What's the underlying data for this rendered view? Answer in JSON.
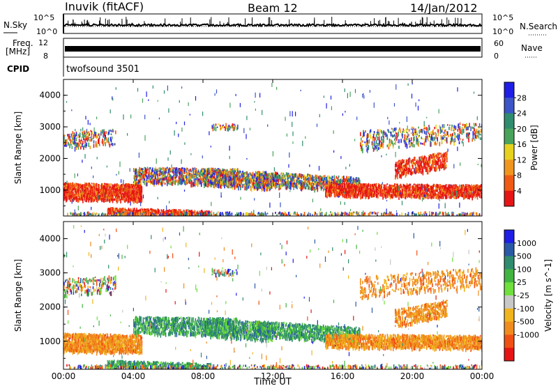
{
  "header": {
    "station": "Inuvik (fitACF)",
    "beam": "Beam 12",
    "date": "14/Jan/2012"
  },
  "top_panels": {
    "nsky_label": "N.Sky",
    "nsky_top": "10^5",
    "nsky_bottom": "10^0",
    "nsearch_label": "N.Search",
    "nsearch_top": "10^5",
    "nsearch_bottom": "10^0",
    "freq_label_1": "Freq.",
    "freq_label_2": "[MHz]",
    "freq_top": "12",
    "freq_bottom": "8",
    "nave_label": "Nave",
    "nave_top": "60",
    "nave_bottom": "0",
    "cpid_label": "CPID",
    "cpid_value": "twofsound 3501"
  },
  "colors": {
    "power": [
      "#1e1ee6",
      "#3c55c8",
      "#2f8c6e",
      "#4aa35a",
      "#e6d21e",
      "#f0961e",
      "#f05a14",
      "#e61414"
    ],
    "velocity": [
      "#1e1ee6",
      "#2a5aa6",
      "#2f8c6e",
      "#41b441",
      "#6fe03c",
      "#c8c8c8",
      "#f0b41e",
      "#f08c1e",
      "#f05014",
      "#e61414"
    ]
  },
  "chart_data": [
    {
      "type": "heatmap",
      "name": "Power",
      "ylabel": "Slant Range [km]",
      "colorbar_label": "Power [dB]",
      "colorbar_ticks": [
        "28",
        "24",
        "20",
        "16",
        "12",
        "8",
        "4"
      ],
      "x_ticks": [
        "00:00",
        "04:00",
        "08:00",
        "12:00",
        "16:00",
        "20:00",
        "00:00"
      ],
      "y_ticks": [
        "1000",
        "2000",
        "3000",
        "4000"
      ],
      "y_range_km": [
        180,
        4500
      ],
      "x_range_hours": [
        0,
        24
      ]
    },
    {
      "type": "heatmap",
      "name": "Velocity",
      "xlabel": "Time UT",
      "ylabel": "Slant Range [km]",
      "colorbar_label": "Velocity [m s^-1]",
      "colorbar_ticks": [
        "1000",
        "500",
        "100",
        "25",
        "-25",
        "-100",
        "-500",
        "-1000"
      ],
      "x_ticks": [
        "00:00",
        "04:00",
        "08:00",
        "12:00",
        "16:00",
        "20:00",
        "00:00"
      ],
      "y_ticks": [
        "1000",
        "2000",
        "3000",
        "4000"
      ],
      "y_range_km": [
        180,
        4500
      ],
      "x_range_hours": [
        0,
        24
      ]
    }
  ]
}
